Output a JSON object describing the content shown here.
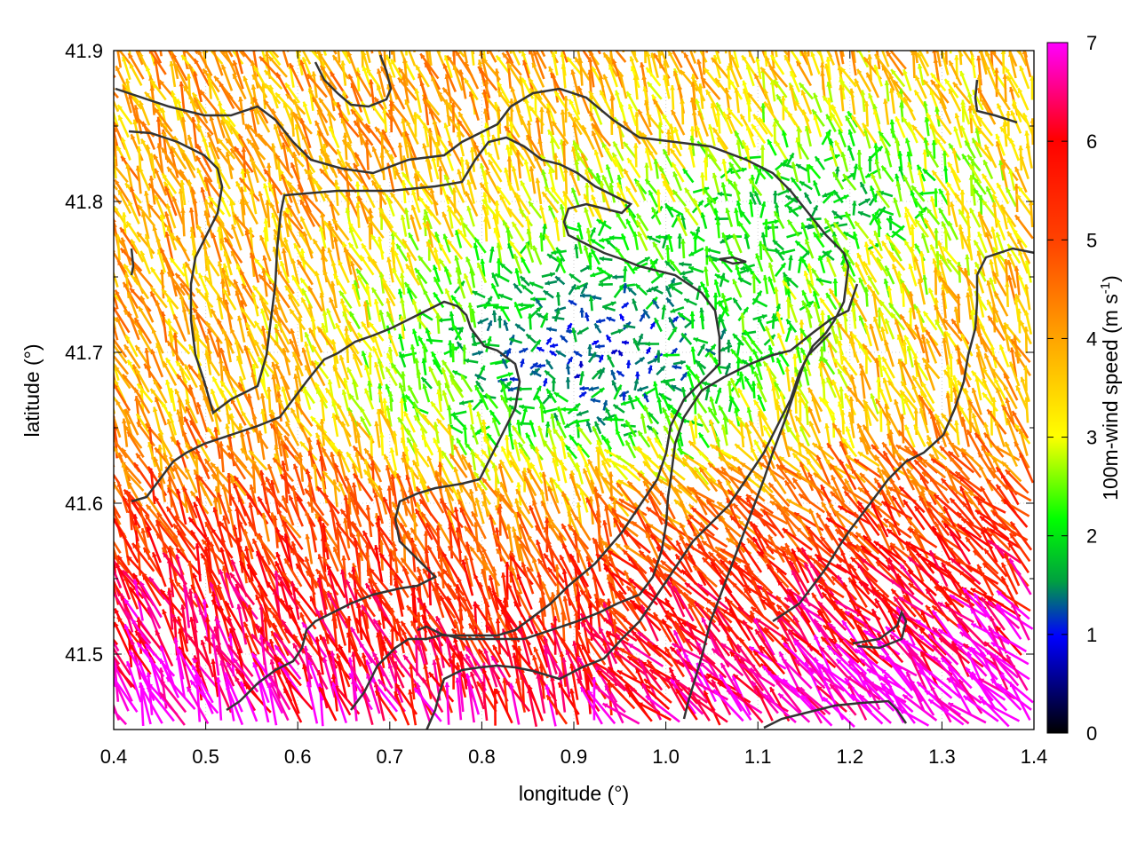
{
  "chart_data": {
    "type": "quiver",
    "title": "",
    "xlabel": "longitude (°)",
    "ylabel": "latitude (°)",
    "colorbar_label_main": "100m-wind speed (m s",
    "colorbar_label_sup": "-1",
    "colorbar_label_close": ")",
    "xlim": [
      0.4,
      1.4
    ],
    "ylim": [
      41.45,
      41.9
    ],
    "x_ticks": [
      "0.4",
      "0.5",
      "0.6",
      "0.7",
      "0.8",
      "0.9",
      "1.0",
      "1.1",
      "1.2",
      "1.3",
      "1.4"
    ],
    "y_ticks": [
      "41.5",
      "41.6",
      "41.7",
      "41.8",
      "41.9"
    ],
    "colorbar_range": [
      0,
      7
    ],
    "colorbar_ticks": [
      "0",
      "1",
      "2",
      "3",
      "4",
      "5",
      "6",
      "7"
    ],
    "colormap": [
      "#000000",
      "#0000ff",
      "#00a040",
      "#00ff00",
      "#ffff00",
      "#ffa500",
      "#ff4400",
      "#ff0000",
      "#ff00ff"
    ],
    "grid": "dotted",
    "wind_field_regions": [
      {
        "area": "south-east",
        "speed": 7.0,
        "direction": "north-westward"
      },
      {
        "area": "south-west",
        "speed": 6.8,
        "direction": "northward"
      },
      {
        "area": "central",
        "speed": 1.5,
        "direction": "variable"
      },
      {
        "area": "north-east",
        "speed": 2.5,
        "direction": "variable"
      },
      {
        "area": "west",
        "speed": 4.5,
        "direction": "north-westward"
      }
    ],
    "contour_color": "#333333"
  }
}
